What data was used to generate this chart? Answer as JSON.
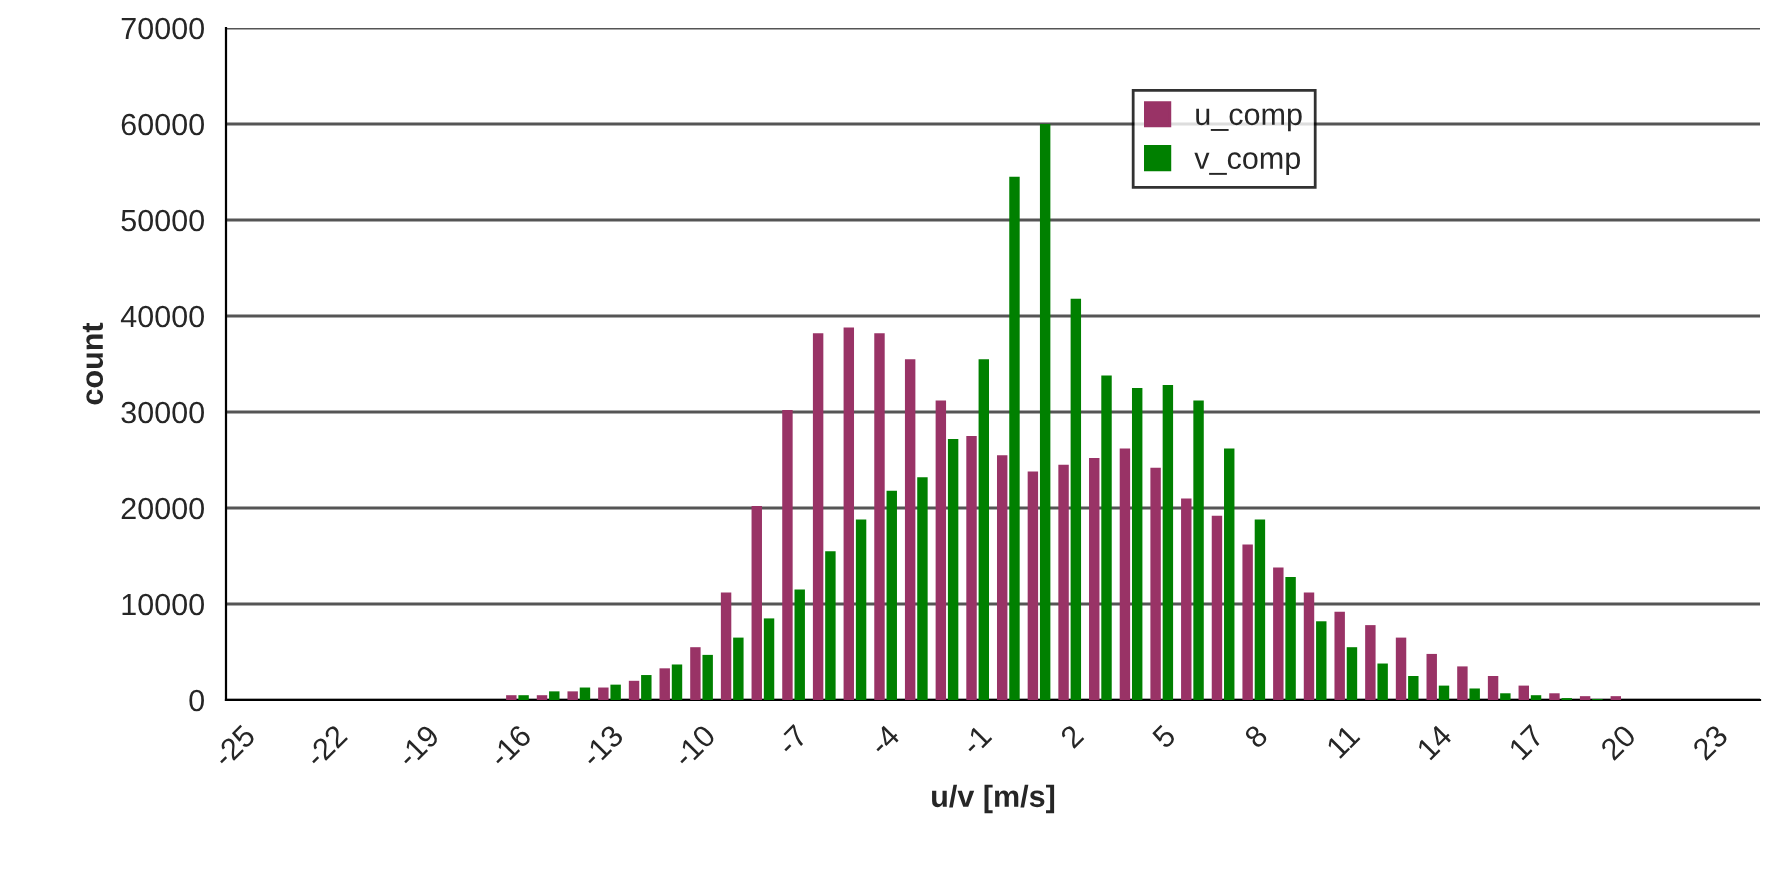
{
  "chart_data": {
    "type": "bar",
    "xlabel": "u/v [m/s]",
    "ylabel": "count",
    "categories": [
      "-25",
      null,
      null,
      "-22",
      null,
      null,
      "-19",
      null,
      null,
      "-16",
      null,
      null,
      "-13",
      null,
      null,
      "-10",
      null,
      null,
      "-7",
      null,
      null,
      "-4",
      null,
      null,
      "-1",
      null,
      null,
      "2",
      null,
      null,
      "5",
      null,
      null,
      "8",
      null,
      null,
      "11",
      null,
      null,
      "14",
      null,
      null,
      "17",
      null,
      null,
      "20",
      null,
      null,
      "23",
      null
    ],
    "series": [
      {
        "name": "u_comp",
        "color": "#993366",
        "values": [
          0,
          0,
          0,
          0,
          0,
          0,
          0,
          0,
          0,
          500,
          500,
          900,
          1300,
          2000,
          3300,
          5500,
          11200,
          20200,
          30200,
          38200,
          38800,
          38200,
          35500,
          31200,
          27500,
          25500,
          23800,
          24500,
          25200,
          26200,
          24200,
          21000,
          19200,
          16200,
          13800,
          11200,
          9200,
          7800,
          6500,
          4800,
          3500,
          2500,
          1500,
          700,
          400,
          400,
          0,
          0,
          0,
          0
        ]
      },
      {
        "name": "v_comp",
        "color": "#008000",
        "values": [
          0,
          0,
          0,
          0,
          0,
          0,
          0,
          0,
          0,
          500,
          900,
          1300,
          1600,
          2600,
          3700,
          4700,
          6500,
          8500,
          11500,
          15500,
          18800,
          21800,
          23200,
          27200,
          35500,
          54500,
          60000,
          41800,
          33800,
          32500,
          32800,
          31200,
          26200,
          18800,
          12800,
          8200,
          5500,
          3800,
          2500,
          1500,
          1200,
          700,
          500,
          200,
          100,
          0,
          0,
          0,
          0,
          0
        ]
      }
    ],
    "ylim": [
      0,
      70000
    ],
    "yticks": [
      0,
      10000,
      20000,
      30000,
      40000,
      50000,
      60000,
      70000
    ],
    "grid": "y",
    "legend": "top right"
  }
}
